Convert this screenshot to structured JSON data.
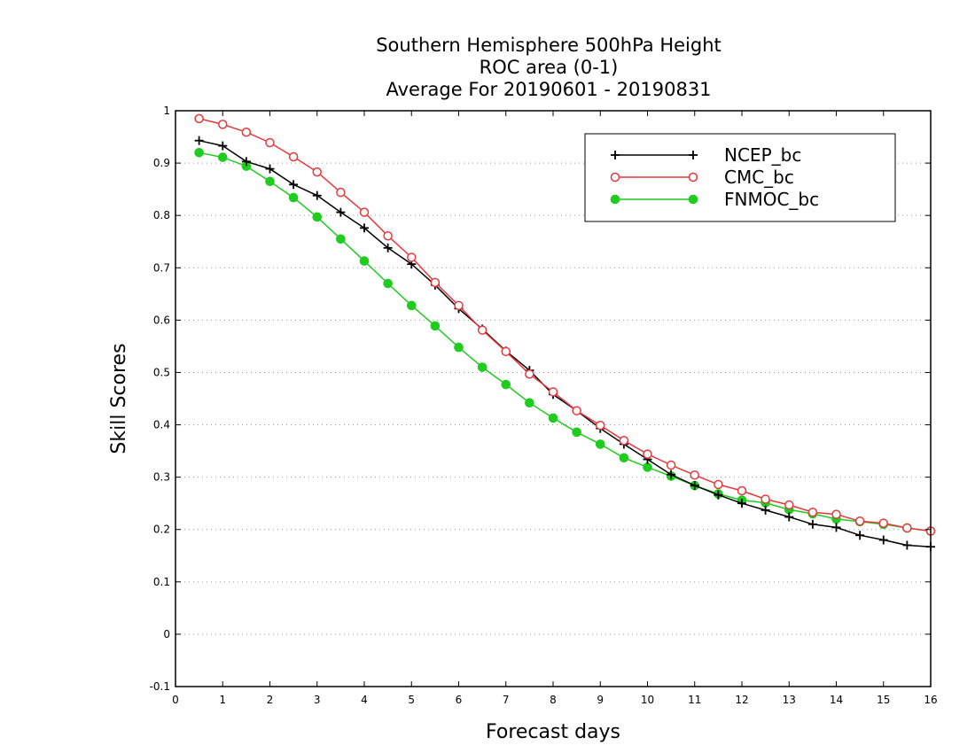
{
  "chart_data": {
    "type": "line",
    "title": [
      "Southern Hemisphere 500hPa Height",
      "ROC area (0-1)",
      "Average For 20190601 - 20190831"
    ],
    "xlabel": "Forecast days",
    "ylabel": "Skill Scores",
    "xlim": [
      0,
      16
    ],
    "ylim": [
      -0.1,
      1
    ],
    "xticks": [
      0,
      1,
      2,
      3,
      4,
      5,
      6,
      7,
      8,
      9,
      10,
      11,
      12,
      13,
      14,
      15,
      16
    ],
    "yticks": [
      -0.1,
      0,
      0.1,
      0.2,
      0.3,
      0.4,
      0.5,
      0.6,
      0.7,
      0.8,
      0.9,
      1
    ],
    "ytick_labels": [
      "-0.1",
      "0",
      "0.1",
      "0.2",
      "0.3",
      "0.4",
      "0.5",
      "0.6",
      "0.7",
      "0.8",
      "0.9",
      "1"
    ],
    "grid": "horizontal dotted",
    "legend_position": "top-right",
    "x": [
      0.5,
      1,
      1.5,
      2,
      2.5,
      3,
      3.5,
      4,
      4.5,
      5,
      5.5,
      6,
      6.5,
      7,
      7.5,
      8,
      8.5,
      9,
      9.5,
      10,
      10.5,
      11,
      11.5,
      12,
      12.5,
      13,
      13.5,
      14,
      14.5,
      15,
      15.5,
      16
    ],
    "series": [
      {
        "name": "NCEP_bc",
        "color": "#000000",
        "marker": "plus",
        "values": [
          0.943,
          0.933,
          0.903,
          0.889,
          0.859,
          0.838,
          0.806,
          0.776,
          0.738,
          0.707,
          0.667,
          0.622,
          0.583,
          0.541,
          0.504,
          0.458,
          0.427,
          0.393,
          0.363,
          0.334,
          0.305,
          0.284,
          0.266,
          0.25,
          0.237,
          0.224,
          0.21,
          0.204,
          0.189,
          0.18,
          0.17,
          0.167
        ]
      },
      {
        "name": "CMC_bc",
        "color": "#e8383d",
        "marker": "open-circle",
        "values": [
          0.985,
          0.974,
          0.959,
          0.939,
          0.912,
          0.883,
          0.844,
          0.806,
          0.761,
          0.72,
          0.672,
          0.628,
          0.581,
          0.54,
          0.497,
          0.463,
          0.427,
          0.399,
          0.37,
          0.344,
          0.323,
          0.304,
          0.286,
          0.274,
          0.258,
          0.247,
          0.233,
          0.229,
          0.216,
          0.212,
          0.203,
          0.197
        ]
      },
      {
        "name": "FNMOC_bc",
        "color": "#1fcc1f",
        "marker": "filled-circle",
        "values": [
          0.92,
          0.911,
          0.894,
          0.865,
          0.834,
          0.797,
          0.755,
          0.713,
          0.67,
          0.628,
          0.589,
          0.548,
          0.51,
          0.477,
          0.442,
          0.413,
          0.386,
          0.363,
          0.337,
          0.319,
          0.302,
          0.284,
          0.268,
          0.256,
          0.251,
          0.238,
          0.23,
          0.22,
          0.215,
          0.21,
          0.203,
          0.197
        ]
      }
    ]
  }
}
